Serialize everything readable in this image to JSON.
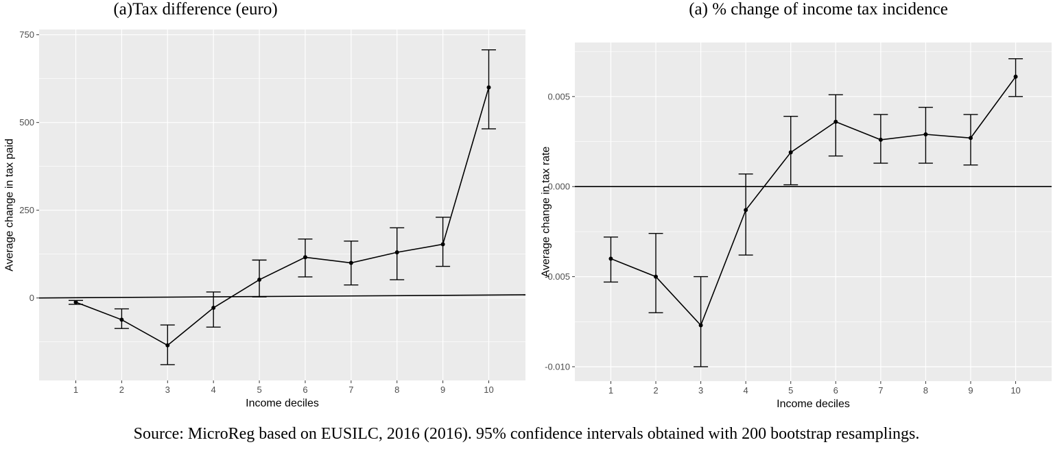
{
  "caption": "Source: MicroReg based on EUSILC, 2016 (2016). 95% confidence intervals obtained with 200 bootstrap resamplings.",
  "colors": {
    "panel_bg": "#ebebeb",
    "grid": "#ffffff",
    "line": "#000000",
    "tick_text": "#4d4d4d"
  },
  "chart_data": [
    {
      "type": "line",
      "title": "(a)Tax difference (euro)",
      "xlabel": "Income deciles",
      "ylabel": "Average change in tax paid",
      "categories": [
        "1",
        "2",
        "3",
        "4",
        "5",
        "6",
        "7",
        "8",
        "9",
        "10"
      ],
      "xlim": [
        0.2,
        10.8
      ],
      "ylim": [
        -235,
        765
      ],
      "yticks": [
        0,
        250,
        500,
        750
      ],
      "ytick_labels": [
        "0",
        "250",
        "500",
        "750"
      ],
      "grid": true,
      "reference_line": {
        "x": [
          0.2,
          10.8
        ],
        "y": [
          0,
          9
        ]
      },
      "series": [
        {
          "values": [
            -12,
            -62,
            -135,
            -28,
            52,
            116,
            100,
            130,
            153,
            600
          ],
          "lower": [
            -18,
            -87,
            -190,
            -83,
            3,
            60,
            37,
            52,
            90,
            482
          ],
          "upper": [
            -7,
            -31,
            -77,
            17,
            108,
            168,
            162,
            200,
            230,
            707
          ]
        }
      ]
    },
    {
      "type": "line",
      "title": "(a) % change of income tax incidence",
      "xlabel": "Income deciles",
      "ylabel": "Average change in tax rate",
      "categories": [
        "1",
        "2",
        "3",
        "4",
        "5",
        "6",
        "7",
        "8",
        "9",
        "10"
      ],
      "xlim": [
        0.2,
        10.8
      ],
      "ylim": [
        -0.0108,
        0.008
      ],
      "yticks": [
        -0.01,
        -0.005,
        0,
        0.005
      ],
      "ytick_labels": [
        "-0.010",
        "-0.005",
        "0.000",
        "0.005"
      ],
      "grid": true,
      "reference_line": {
        "x": [
          0.2,
          10.8
        ],
        "y": [
          0,
          0
        ]
      },
      "series": [
        {
          "values": [
            -0.004,
            -0.005,
            -0.0077,
            -0.0013,
            0.0019,
            0.0036,
            0.0026,
            0.0029,
            0.0027,
            0.0061
          ],
          "lower": [
            -0.0053,
            -0.007,
            -0.01,
            -0.0038,
            0.0001,
            0.0017,
            0.0013,
            0.0013,
            0.0012,
            0.005
          ],
          "upper": [
            -0.0028,
            -0.0026,
            -0.005,
            0.0007,
            0.0039,
            0.0051,
            0.004,
            0.0044,
            0.004,
            0.0071
          ]
        }
      ]
    }
  ]
}
